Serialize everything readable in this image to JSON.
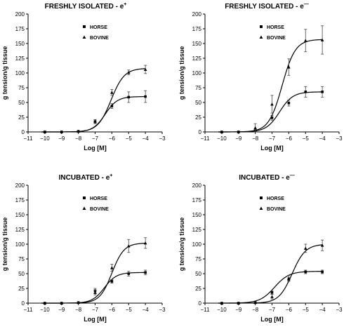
{
  "chart_data": [
    {
      "type": "line",
      "title": "FRESHLY ISOLATED - e",
      "title_superscript": "+",
      "xlabel": "Log [M]",
      "ylabel": "g tension/g tissue",
      "xlim": [
        -11,
        -3
      ],
      "ylim": [
        0,
        200
      ],
      "xticks": [
        "−11",
        "−10",
        "−9",
        "−8",
        "−7",
        "−6",
        "−5",
        "−4",
        "−3"
      ],
      "yticks": [
        "0",
        "25",
        "50",
        "75",
        "100",
        "125",
        "150",
        "175",
        "200"
      ],
      "legend": [
        "HORSE",
        "BOVINE"
      ],
      "series": [
        {
          "name": "HORSE",
          "marker": "square",
          "x": [
            -10,
            -9,
            -8,
            -7,
            -6,
            -5,
            -4
          ],
          "y": [
            0,
            0,
            1,
            17,
            44,
            59,
            60
          ],
          "err": [
            0,
            0,
            1,
            3,
            4,
            9,
            10
          ],
          "fit": {
            "bottom": 0,
            "top": 60,
            "logEC50": -6.4,
            "hill": 1.2
          }
        },
        {
          "name": "BOVINE",
          "marker": "triangle",
          "x": [
            -10,
            -9,
            -8,
            -7,
            -6,
            -5,
            -4
          ],
          "y": [
            0,
            0,
            1,
            18,
            67,
            101,
            106
          ],
          "err": [
            0,
            0,
            1,
            3,
            5,
            4,
            7
          ],
          "fit": {
            "bottom": 0,
            "top": 108,
            "logEC50": -6.05,
            "hill": 1.1
          }
        }
      ]
    },
    {
      "type": "line",
      "title": "FRESHLY ISOLATED - e",
      "title_superscript": "—",
      "xlabel": "Log [M]",
      "ylabel": "g tension/g tissue",
      "xlim": [
        -11,
        -3
      ],
      "ylim": [
        0,
        200
      ],
      "xticks": [
        "−11",
        "−10",
        "−9",
        "−8",
        "−7",
        "−6",
        "−5",
        "−4",
        "−3"
      ],
      "yticks": [
        "0",
        "25",
        "50",
        "75",
        "100",
        "125",
        "150",
        "175",
        "200"
      ],
      "legend": [
        "HORSE",
        "BOVINE"
      ],
      "series": [
        {
          "name": "HORSE",
          "marker": "square",
          "x": [
            -10,
            -9,
            -8,
            -7,
            -6,
            -5,
            -4
          ],
          "y": [
            0,
            0,
            2,
            24,
            49,
            68,
            68
          ],
          "err": [
            0,
            0,
            2,
            4,
            5,
            9,
            9
          ],
          "fit": {
            "bottom": 0,
            "top": 68,
            "logEC50": -6.55,
            "hill": 1.1
          }
        },
        {
          "name": "BOVINE",
          "marker": "triangle",
          "x": [
            -10,
            -9,
            -8,
            -7,
            -6,
            -5,
            -4
          ],
          "y": [
            0,
            0,
            7,
            47,
            110,
            155,
            156
          ],
          "err": [
            0,
            0,
            7,
            15,
            14,
            19,
            24
          ],
          "fit": {
            "bottom": 0,
            "top": 157,
            "logEC50": -6.4,
            "hill": 1.1
          }
        }
      ]
    },
    {
      "type": "line",
      "title": "INCUBATED - e",
      "title_superscript": "+",
      "xlabel": "Log [M]",
      "ylabel": "g tension/g tissue",
      "xlim": [
        -11,
        -3
      ],
      "ylim": [
        0,
        200
      ],
      "xticks": [
        "−11",
        "−10",
        "−9",
        "−8",
        "−7",
        "−6",
        "−5",
        "−4",
        "−3"
      ],
      "yticks": [
        "0",
        "25",
        "50",
        "75",
        "100",
        "125",
        "150",
        "175",
        "200"
      ],
      "legend": [
        "HORSE",
        "BOVINE"
      ],
      "series": [
        {
          "name": "HORSE",
          "marker": "square",
          "x": [
            -10,
            -9,
            -8,
            -7,
            -6,
            -5,
            -4
          ],
          "y": [
            0,
            0,
            1,
            21,
            37,
            50,
            52
          ],
          "err": [
            0,
            0,
            1,
            4,
            3,
            4,
            4
          ],
          "fit": {
            "bottom": 0,
            "top": 52,
            "logEC50": -6.45,
            "hill": 1.2
          }
        },
        {
          "name": "BOVINE",
          "marker": "triangle",
          "x": [
            -10,
            -9,
            -8,
            -7,
            -6,
            -5,
            -4
          ],
          "y": [
            0,
            0,
            1,
            18,
            60,
            97,
            102
          ],
          "err": [
            0,
            0,
            1,
            4,
            6,
            11,
            9
          ],
          "fit": {
            "bottom": 0,
            "top": 102,
            "logEC50": -6.0,
            "hill": 1.2
          }
        }
      ]
    },
    {
      "type": "line",
      "title": "INCUBATED - e",
      "title_superscript": "—",
      "xlabel": "Log [M]",
      "ylabel": "g tension/g tissue",
      "xlim": [
        -11,
        -3
      ],
      "ylim": [
        0,
        200
      ],
      "xticks": [
        "−11",
        "−10",
        "−9",
        "−8",
        "−7",
        "−6",
        "−5",
        "−4",
        "−3"
      ],
      "yticks": [
        "0",
        "25",
        "50",
        "75",
        "100",
        "125",
        "150",
        "175",
        "200"
      ],
      "legend": [
        "HORSE",
        "BOVINE"
      ],
      "series": [
        {
          "name": "HORSE",
          "marker": "square",
          "x": [
            -10,
            -9,
            -8,
            -7,
            -6,
            -5,
            -4
          ],
          "y": [
            0,
            0,
            1,
            18,
            40,
            53,
            53
          ],
          "err": [
            0,
            0,
            1,
            3,
            3,
            3,
            3
          ],
          "fit": {
            "bottom": 0,
            "top": 54,
            "logEC50": -6.85,
            "hill": 1.0
          }
        },
        {
          "name": "BOVINE",
          "marker": "triangle",
          "x": [
            -10,
            -9,
            -8,
            -7,
            -6,
            -5,
            -4
          ],
          "y": [
            0,
            0,
            1,
            11,
            42,
            93,
            98
          ],
          "err": [
            0,
            0,
            1,
            4,
            5,
            7,
            9
          ],
          "fit": {
            "bottom": 0,
            "top": 100,
            "logEC50": -5.8,
            "hill": 1.1
          }
        }
      ]
    }
  ]
}
